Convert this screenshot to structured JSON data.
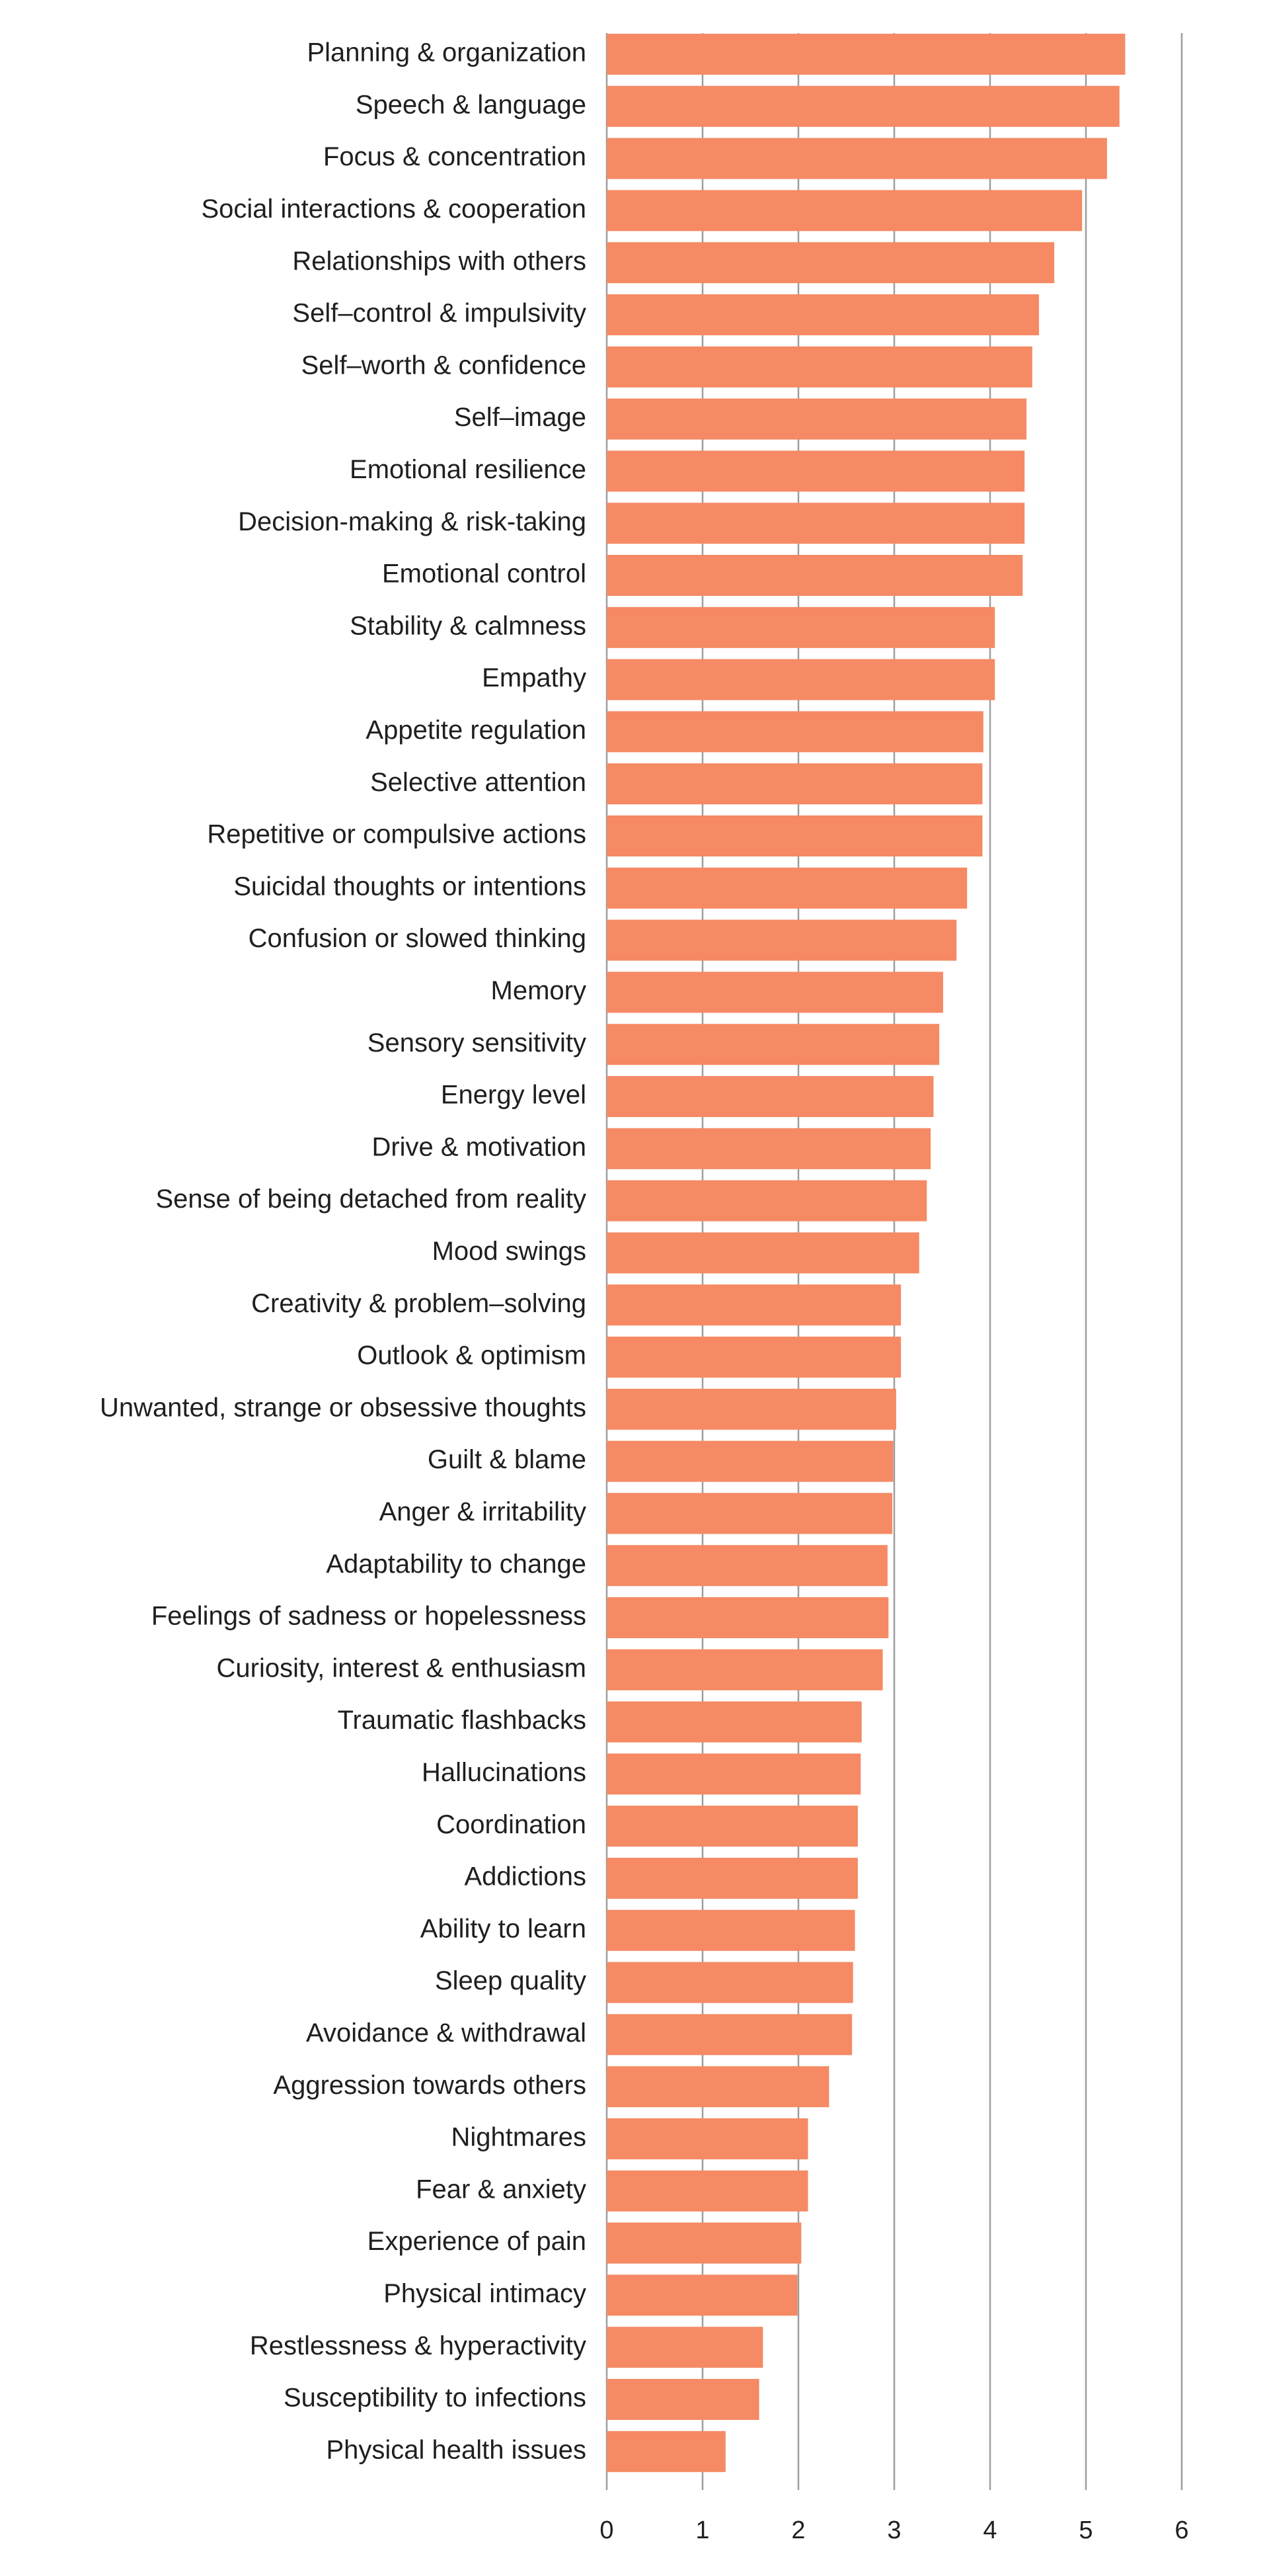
{
  "chart_data": {
    "type": "bar",
    "orientation": "horizontal",
    "title": "",
    "xlabel": "",
    "ylabel": "",
    "xlim": [
      0,
      6
    ],
    "x_ticks": [
      0,
      1,
      2,
      3,
      4,
      5,
      6
    ],
    "grid": "vertical",
    "bar_color": "#F58A64",
    "categories": [
      "Planning & organization",
      "Speech & language",
      "Focus & concentration",
      "Social interactions & cooperation",
      "Relationships with others",
      "Self–control & impulsivity",
      "Self–worth & confidence",
      "Self–image",
      "Emotional resilience",
      "Decision-making & risk-taking",
      "Emotional control",
      "Stability & calmness",
      "Empathy",
      "Appetite regulation",
      "Selective attention",
      "Repetitive or compulsive actions",
      "Suicidal thoughts or intentions",
      "Confusion or slowed thinking",
      "Memory",
      "Sensory sensitivity",
      "Energy level",
      "Drive & motivation",
      "Sense of being detached from reality",
      "Mood swings",
      "Creativity & problem–solving",
      "Outlook & optimism",
      "Unwanted, strange or obsessive thoughts",
      "Guilt & blame",
      "Anger & irritability",
      "Adaptability to change",
      "Feelings of sadness or hopelessness",
      "Curiosity, interest & enthusiasm",
      "Traumatic flashbacks",
      "Hallucinations",
      "Coordination",
      "Addictions",
      "Ability to learn",
      "Sleep quality",
      "Avoidance & withdrawal",
      "Aggression towards others",
      "Nightmares",
      "Fear & anxiety",
      "Experience of pain",
      "Physical intimacy",
      "Restlessness & hyperactivity",
      "Susceptibility to infections",
      "Physical health issues"
    ],
    "values": [
      5.41,
      5.35,
      5.22,
      4.96,
      4.67,
      4.51,
      4.44,
      4.38,
      4.36,
      4.36,
      4.34,
      4.05,
      4.05,
      3.93,
      3.92,
      3.92,
      3.76,
      3.65,
      3.51,
      3.47,
      3.41,
      3.38,
      3.34,
      3.26,
      3.07,
      3.07,
      3.02,
      2.99,
      2.98,
      2.93,
      2.94,
      2.88,
      2.66,
      2.65,
      2.62,
      2.62,
      2.59,
      2.57,
      2.56,
      2.32,
      2.1,
      2.1,
      2.03,
      1.99,
      1.63,
      1.59,
      1.24
    ]
  }
}
